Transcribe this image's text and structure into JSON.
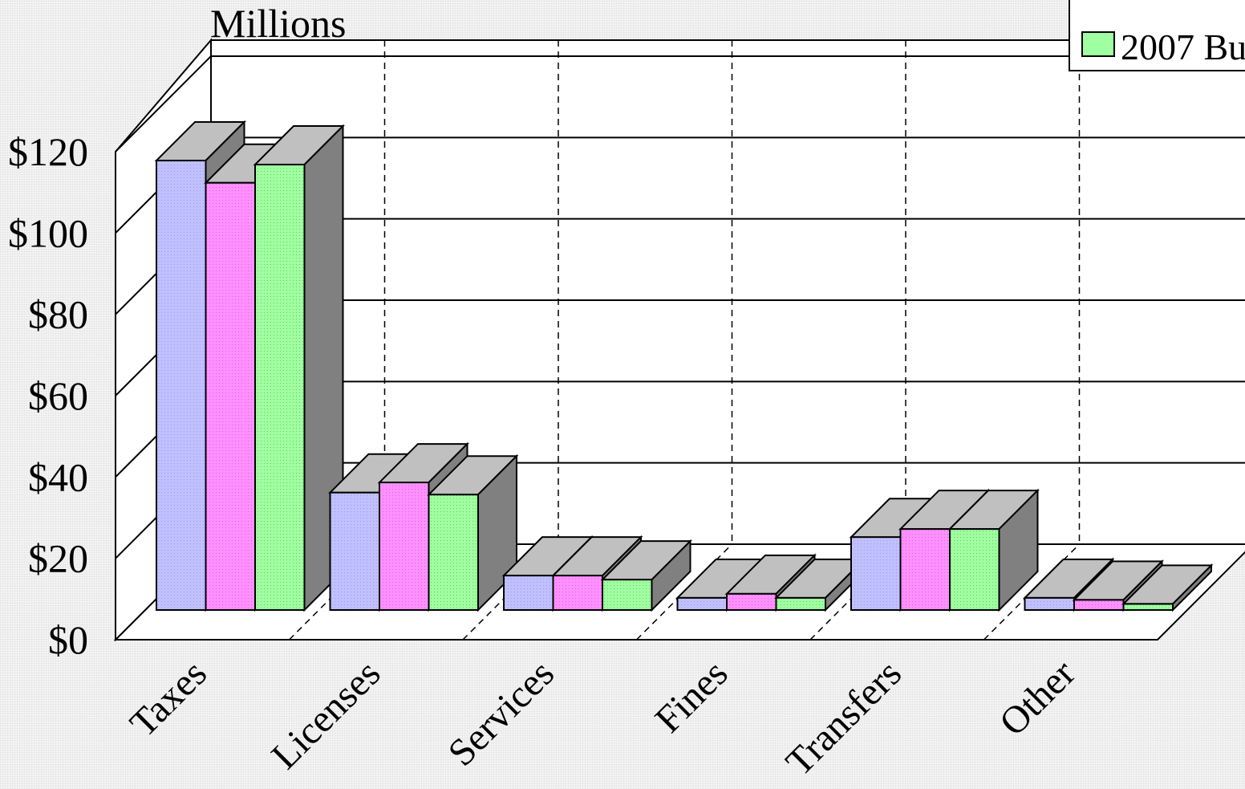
{
  "chart_data": {
    "type": "bar",
    "style": "3d-clustered-column",
    "title": "",
    "unit_label": "Millions",
    "xlabel": "",
    "ylabel": "",
    "categories": [
      "Taxes",
      "Licenses",
      "Services",
      "Fines",
      "Transfers",
      "Other"
    ],
    "series": [
      {
        "color": "#c0c0ff",
        "values": [
          111,
          29,
          8.5,
          3,
          18,
          3
        ]
      },
      {
        "color": "#ff90ff",
        "values": [
          105.5,
          31.5,
          8.5,
          4,
          20,
          2.5
        ]
      },
      {
        "name": "2007 Bu",
        "color": "#a0ffa0",
        "values": [
          110,
          28.5,
          7.5,
          3,
          20,
          1.5
        ]
      }
    ],
    "ylim": [
      0,
      120
    ],
    "yticks": [
      "$0",
      "$20",
      "$40",
      "$60",
      "$80",
      "$100",
      "$120"
    ],
    "grid": true,
    "legend_position": "top-right"
  }
}
